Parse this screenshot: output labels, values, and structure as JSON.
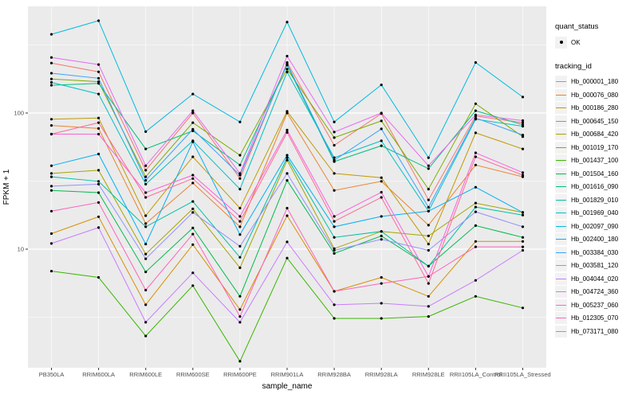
{
  "figure": {
    "background": "#FFFFFF",
    "panel_background": "#EBEBEB",
    "grid_color": "#FFFFFF",
    "tick_label_color": "#4D4D4D",
    "point_color": "#000000"
  },
  "axes": {
    "x_title": "sample_name",
    "y_title": "FPKM + 1",
    "y_tick_labels": [
      "100",
      "10"
    ],
    "y_tick_values": [
      100,
      10
    ],
    "y_minor_values": [
      3.1623,
      31.623,
      316.23
    ]
  },
  "legend": {
    "quant_status_title": "quant_status",
    "quant_status_items": [
      {
        "label": "OK",
        "marker": "point",
        "color": "#000000"
      }
    ],
    "tracking_id_title": "tracking_id"
  },
  "chart_data": {
    "type": "line",
    "title": "",
    "xlabel": "sample_name",
    "ylabel": "FPKM + 1",
    "y_scale": "log10",
    "ylim": [
      1.34,
      600
    ],
    "grid": true,
    "legend_position": "right",
    "point_marker": "black dot (quant_status OK)",
    "categories": [
      "PB350LA",
      "RRIM600LA",
      "RRIM600LE",
      "RRIM600SE",
      "RRIM600PE",
      "RRIM901LA",
      "RRIM928BA",
      "RRIM928LA",
      "RRIM928LE",
      "RRII105LA_Control",
      "RRII105LA_Stressed"
    ],
    "series": [
      {
        "name": "Hb_000001_180",
        "color": "#F8766D",
        "values": [
          233,
          201,
          38,
          100,
          33,
          235,
          58,
          99,
          23,
          95,
          85
        ]
      },
      {
        "name": "Hb_000076_080",
        "color": "#EA8331",
        "values": [
          81,
          77,
          15.4,
          30.6,
          14.6,
          100,
          27,
          31.5,
          15,
          41.5,
          34
        ]
      },
      {
        "name": "Hb_000186_280",
        "color": "#D89000",
        "values": [
          13,
          17.3,
          3.9,
          10.8,
          3.6,
          17.6,
          4.9,
          6.2,
          4.5,
          11.4,
          11.4
        ]
      },
      {
        "name": "Hb_000645_150",
        "color": "#C09B00",
        "values": [
          90,
          92,
          17.6,
          47.7,
          20,
          103,
          36,
          33.5,
          10.9,
          71.5,
          54.5
        ]
      },
      {
        "name": "Hb_000684_420",
        "color": "#A3A500",
        "values": [
          36,
          38,
          9.2,
          19.8,
          7.3,
          45,
          10.1,
          13.5,
          12.5,
          21.8,
          18.6
        ]
      },
      {
        "name": "Hb_001019_170",
        "color": "#7CAE00",
        "values": [
          178,
          170,
          34,
          85,
          49,
          210,
          66,
          87.5,
          27.6,
          117,
          67
        ]
      },
      {
        "name": "Hb_001437_100",
        "color": "#39B600",
        "values": [
          6.9,
          6.2,
          2.3,
          5.4,
          1.5,
          8.6,
          3.1,
          3.1,
          3.2,
          4.5,
          3.7
        ]
      },
      {
        "name": "Hb_001504_160",
        "color": "#00BB4E",
        "values": [
          27,
          26,
          6.8,
          14.3,
          4.5,
          32,
          9.3,
          12.5,
          7.5,
          14.9,
          12.2
        ]
      },
      {
        "name": "Hb_001616_090",
        "color": "#00BF7D",
        "values": [
          160,
          165,
          54.5,
          74,
          41.5,
          225,
          44,
          57.5,
          39,
          104,
          82
        ]
      },
      {
        "name": "Hb_001829_010",
        "color": "#00C1A3",
        "values": [
          34,
          31.5,
          14.6,
          22.4,
          8.7,
          47,
          12.2,
          13.5,
          7.5,
          20.4,
          17.8
        ]
      },
      {
        "name": "Hb_001969_040",
        "color": "#00BFC4",
        "values": [
          168,
          138,
          30,
          62.5,
          27.6,
          200,
          47,
          62.5,
          19,
          90,
          80
        ]
      },
      {
        "name": "Hb_002097_090",
        "color": "#00BAE0",
        "values": [
          379,
          477,
          73,
          138,
          86,
          466,
          86,
          161,
          47,
          235,
          131
        ]
      },
      {
        "name": "Hb_002400_180",
        "color": "#00B0F6",
        "values": [
          41,
          50,
          10.9,
          61.5,
          12.8,
          49,
          14.6,
          17.4,
          19,
          28.5,
          18.6
        ]
      },
      {
        "name": "Hb_003384_030",
        "color": "#35A2FF",
        "values": [
          196,
          180,
          32,
          76,
          35,
          230,
          45,
          76.5,
          20.3,
          92,
          69
        ]
      },
      {
        "name": "Hb_003581_120",
        "color": "#9590FF",
        "values": [
          29,
          30,
          8.5,
          18.6,
          10.5,
          36,
          9.8,
          11.8,
          9.8,
          18.8,
          14.6
        ]
      },
      {
        "name": "Hb_004044_020",
        "color": "#C77CFF",
        "values": [
          11,
          14.4,
          2.9,
          6.7,
          2.9,
          11.3,
          3.9,
          4,
          3.8,
          5.9,
          9.8
        ]
      },
      {
        "name": "Hb_004724_360",
        "color": "#E76BF3",
        "values": [
          256,
          227,
          41,
          104,
          36,
          262,
          72.5,
          100,
          41,
          97,
          88
        ]
      },
      {
        "name": "Hb_005237_060",
        "color": "#FA62DB",
        "values": [
          70,
          70,
          26,
          35,
          17.4,
          75,
          17.4,
          26.2,
          6.3,
          51,
          36.5
        ]
      },
      {
        "name": "Hb_012305_070",
        "color": "#FF62BC",
        "values": [
          19,
          22,
          5,
          12.9,
          3.2,
          20,
          4.9,
          5.6,
          6.3,
          10.4,
          10.4
        ]
      },
      {
        "name": "Hb_073171_080",
        "color": "#FF6A98",
        "values": [
          70,
          85,
          24,
          33,
          16,
          72,
          16,
          24,
          5.6,
          47.7,
          35
        ]
      }
    ]
  }
}
